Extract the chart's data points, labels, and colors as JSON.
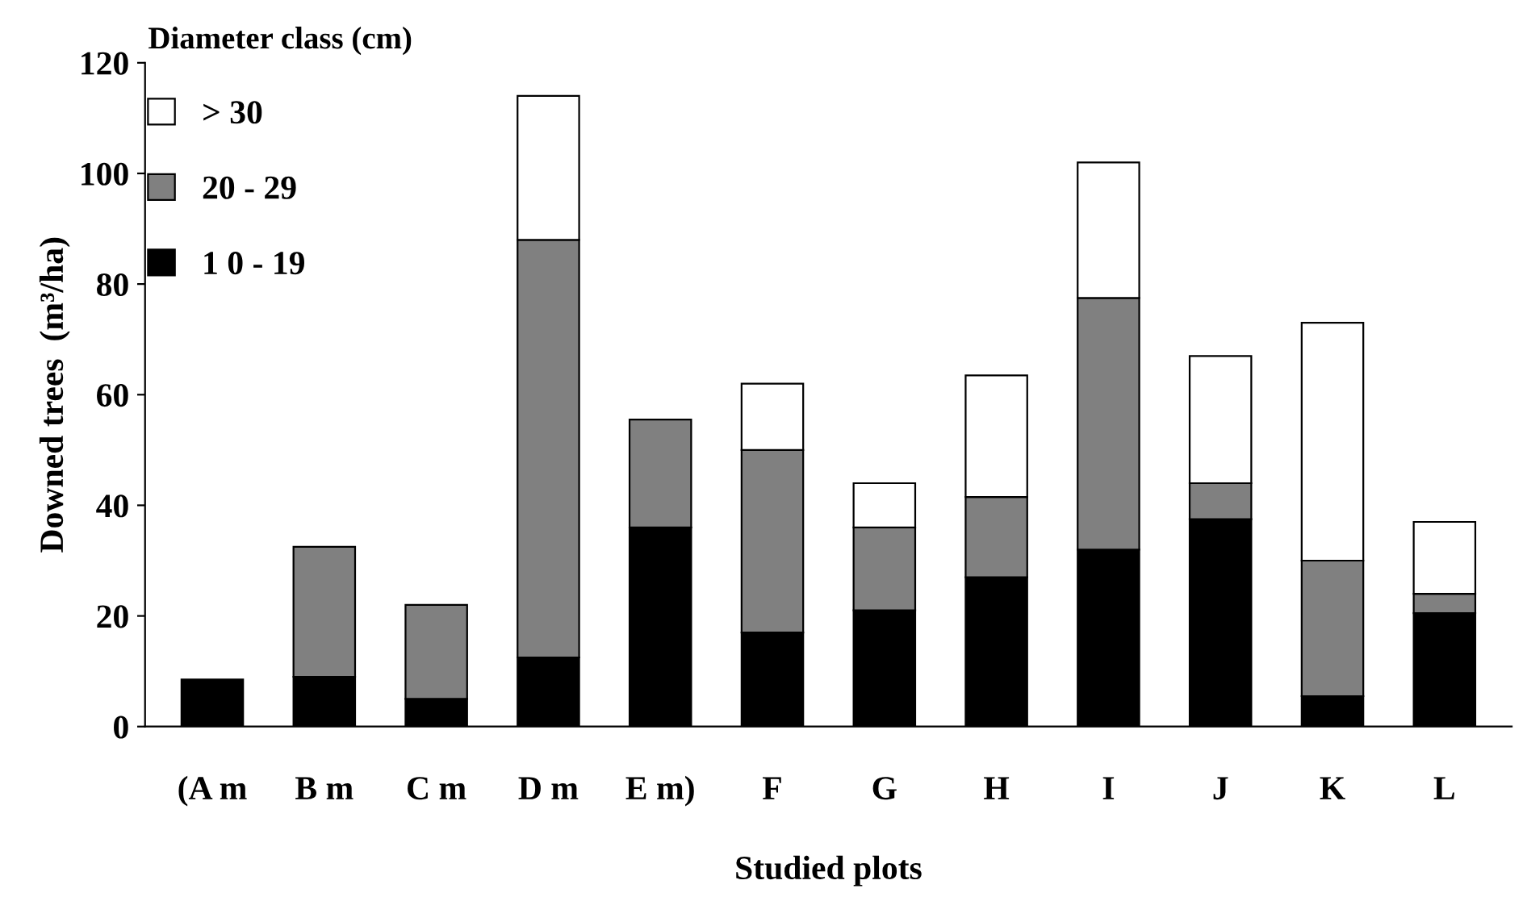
{
  "chart_data": {
    "type": "bar",
    "stacked": true,
    "xlabel": "Studied plots",
    "ylabel": "Downed trees  (m³/ha)",
    "legend_title": "Diameter class (cm)",
    "legend": "top left",
    "grid": false,
    "categories": [
      "(A m",
      "B m",
      "C m",
      "D m",
      "E m)",
      "F",
      "G",
      "H",
      "I",
      "J",
      "K",
      "L"
    ],
    "ylim": [
      0,
      120
    ],
    "yticks": [
      0,
      20,
      40,
      60,
      80,
      100,
      120
    ],
    "series": [
      {
        "name": "1 0 - 19",
        "color": "#000000",
        "values": [
          8.5,
          9,
          5,
          12.5,
          36,
          17,
          21,
          27,
          32,
          37.5,
          5.5,
          20.5
        ]
      },
      {
        "name": "20 - 29",
        "color": "#808080",
        "values": [
          0,
          23.5,
          17,
          75.5,
          19.5,
          33,
          15,
          14.5,
          45.5,
          6.5,
          24.5,
          3.5
        ]
      },
      {
        "name": "> 30",
        "color": "#ffffff",
        "values": [
          0,
          0,
          0,
          26,
          0,
          12,
          8,
          22,
          24.5,
          23,
          43,
          13
        ]
      }
    ]
  }
}
